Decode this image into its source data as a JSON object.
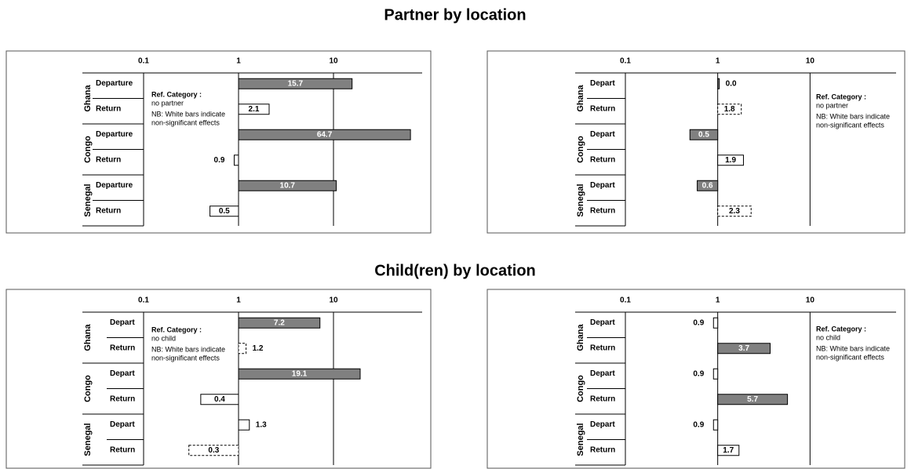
{
  "headings": [
    "Partner by location",
    "Child(ren) by location"
  ],
  "chart_data": [
    {
      "type": "bar",
      "orientation": "horizontal",
      "log_scale": true,
      "xlim": [
        0.1,
        100
      ],
      "xticks": [
        0.1,
        1,
        10
      ],
      "groups": [
        "Ghana",
        "Congo",
        "Senegal"
      ],
      "categories": [
        "Departure",
        "Return",
        "Departure",
        "Return",
        "Departure",
        "Return"
      ],
      "values": [
        15.7,
        2.1,
        64.7,
        0.9,
        10.7,
        0.5
      ],
      "colors": [
        "#808080",
        "#ffffff",
        "#808080",
        "#ffffff",
        "#808080",
        "#ffffff"
      ],
      "dashed": [
        false,
        false,
        false,
        false,
        false,
        false
      ],
      "annotation": {
        "title": "Ref. Category :",
        "lines": [
          "no partner"
        ],
        "note": [
          "NB: White bars indicate",
          "non-significant effects"
        ]
      }
    },
    {
      "type": "bar",
      "orientation": "horizontal",
      "log_scale": true,
      "xlim": [
        0.1,
        100
      ],
      "xticks": [
        0.1,
        1,
        10
      ],
      "groups": [
        "Ghana",
        "Congo",
        "Senegal"
      ],
      "categories": [
        "Depart",
        "Return",
        "Depart",
        "Return",
        "Depart",
        "Return"
      ],
      "values": [
        0.0,
        1.8,
        0.5,
        1.9,
        0.6,
        2.3
      ],
      "value_labels": [
        "0.0",
        "1.8",
        "0.5",
        "1.9",
        "0.6",
        "2.3"
      ],
      "colors": [
        "#808080",
        "#ffffff",
        "#808080",
        "#ffffff",
        "#808080",
        "#ffffff"
      ],
      "dashed": [
        false,
        true,
        false,
        false,
        false,
        true
      ],
      "annotation": {
        "title": "Ref. Category :",
        "lines": [
          "no partner"
        ],
        "note": [
          "NB: White bars indicate",
          "non-significant effects"
        ]
      }
    },
    {
      "type": "bar",
      "orientation": "horizontal",
      "log_scale": true,
      "xlim": [
        0.1,
        100
      ],
      "xticks": [
        0.1,
        1,
        10
      ],
      "groups": [
        "Ghana",
        "Congo",
        "Senegal"
      ],
      "categories": [
        "Depart",
        "Return",
        "Depart",
        "Return",
        "Depart",
        "Return"
      ],
      "values": [
        7.2,
        1.2,
        19.1,
        0.4,
        1.3,
        0.3
      ],
      "colors": [
        "#808080",
        "#ffffff",
        "#808080",
        "#ffffff",
        "#ffffff",
        "#ffffff"
      ],
      "dashed": [
        false,
        true,
        false,
        false,
        false,
        true
      ],
      "annotation": {
        "title": "Ref. Category :",
        "lines": [
          "no child"
        ],
        "note": [
          "NB: White bars indicate",
          "non-significant effects"
        ]
      }
    },
    {
      "type": "bar",
      "orientation": "horizontal",
      "log_scale": true,
      "xlim": [
        0.1,
        100
      ],
      "xticks": [
        0.1,
        1,
        10
      ],
      "groups": [
        "Ghana",
        "Congo",
        "Senegal"
      ],
      "categories": [
        "Depart",
        "Return",
        "Depart",
        "Return",
        "Depart",
        "Return"
      ],
      "values": [
        0.9,
        3.7,
        0.9,
        5.7,
        0.9,
        1.7
      ],
      "colors": [
        "#ffffff",
        "#808080",
        "#ffffff",
        "#808080",
        "#ffffff",
        "#ffffff"
      ],
      "dashed": [
        false,
        false,
        false,
        false,
        false,
        false
      ],
      "annotation": {
        "title": "Ref. Category :",
        "lines": [
          "no child"
        ],
        "note": [
          "NB: White bars indicate",
          "non-significant effects"
        ]
      }
    }
  ]
}
